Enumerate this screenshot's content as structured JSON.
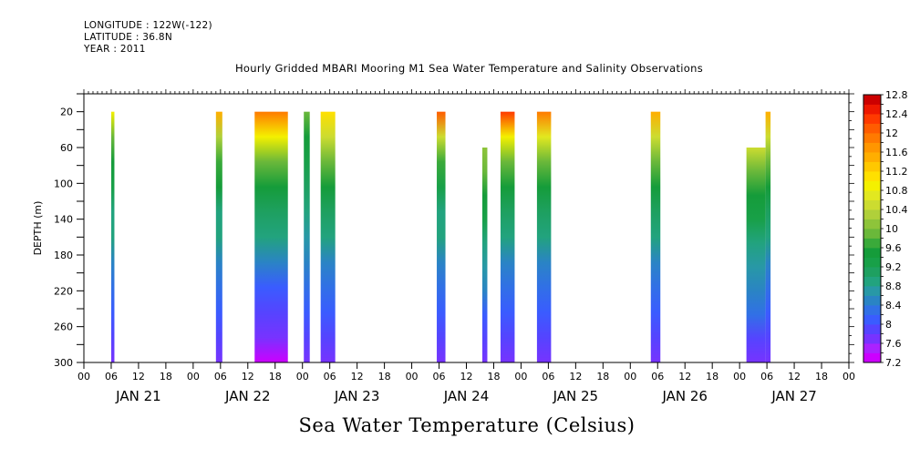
{
  "header": {
    "longitude": "LONGITUDE : 122W(-122)",
    "latitude": "LATITUDE : 36.8N",
    "year": "YEAR : 2011"
  },
  "chart_data": {
    "type": "heatmap",
    "title": "Hourly Gridded MBARI Mooring M1 Sea Water Temperature and Salinity Observations",
    "xlabel": "Sea Water Temperature (Celsius)",
    "ylabel": "DEPTH (m)",
    "x_range_hours": [
      0,
      168
    ],
    "x_hour_ticks": [
      "00",
      "06",
      "12",
      "18",
      "00",
      "06",
      "12",
      "18",
      "00",
      "06",
      "12",
      "18",
      "00",
      "06",
      "12",
      "18",
      "00",
      "06",
      "12",
      "18",
      "00",
      "06",
      "12",
      "18",
      "00",
      "06",
      "12",
      "18",
      "00"
    ],
    "x_day_labels": [
      "JAN 21",
      "JAN 22",
      "JAN 23",
      "JAN 24",
      "JAN 25",
      "JAN 26",
      "JAN 27"
    ],
    "y_range": [
      300,
      0
    ],
    "y_ticks": [
      20,
      60,
      100,
      140,
      180,
      220,
      260,
      300
    ],
    "colorbar": {
      "min": 7.2,
      "max": 12.8,
      "step": 0.2,
      "labels": [
        "12.8",
        "12.4",
        "12",
        "11.6",
        "11.2",
        "10.8",
        "10.4",
        "10",
        "9.6",
        "9.2",
        "8.8",
        "8.4",
        "8",
        "7.6",
        "7.2"
      ],
      "colors": [
        "#cc00ff",
        "#aa22ff",
        "#7733ff",
        "#5544ff",
        "#3a5cff",
        "#3170e6",
        "#2a84c4",
        "#2898a6",
        "#22a37e",
        "#1ea060",
        "#18a048",
        "#159c3a",
        "#3aaa3a",
        "#6ab83a",
        "#8ec43a",
        "#b0d03a",
        "#ccdc30",
        "#e2e820",
        "#f4f000",
        "#ffe000",
        "#ffc800",
        "#ffae00",
        "#ff9600",
        "#ff7a00",
        "#ff5c00",
        "#ff3a00",
        "#ee1800",
        "#cc0000"
      ]
    },
    "profiles": [
      {
        "t0": 6.0,
        "t1": 6.7,
        "top": 20,
        "temps": [
          11.0,
          10.0,
          9.6,
          9.3,
          9.0,
          8.8,
          8.5,
          8.3,
          8.1,
          7.9,
          7.8
        ]
      },
      {
        "t0": 29.0,
        "t1": 30.4,
        "top": 20,
        "temps": [
          11.4,
          10.3,
          9.7,
          9.4,
          9.0,
          8.8,
          8.5,
          8.3,
          8.1,
          7.9,
          7.8
        ]
      },
      {
        "t0": 37.5,
        "t1": 44.8,
        "top": 20,
        "temps": [
          11.8,
          10.8,
          9.9,
          9.5,
          9.1,
          8.8,
          8.5,
          8.2,
          8.0,
          7.7,
          7.2
        ]
      },
      {
        "t0": 48.3,
        "t1": 49.6,
        "top": 20,
        "temps": [
          10.0,
          9.6,
          9.3,
          9.1,
          8.9,
          8.7,
          8.5,
          8.3,
          8.1,
          7.9,
          7.7
        ]
      },
      {
        "t0": 52.0,
        "t1": 55.2,
        "top": 20,
        "temps": [
          11.2,
          10.5,
          9.8,
          9.4,
          9.1,
          8.8,
          8.5,
          8.3,
          8.1,
          7.9,
          7.7
        ]
      },
      {
        "t0": 77.5,
        "t1": 79.4,
        "top": 20,
        "temps": [
          12.2,
          10.6,
          9.7,
          9.3,
          9.0,
          8.8,
          8.5,
          8.3,
          8.1,
          7.9,
          7.7
        ]
      },
      {
        "t0": 87.5,
        "t1": 88.6,
        "top": 60,
        "temps": [
          10.2,
          10.0,
          9.6,
          9.3,
          9.0,
          8.7,
          8.5,
          8.2,
          8.0,
          7.8
        ]
      },
      {
        "t0": 91.5,
        "t1": 94.6,
        "top": 20,
        "temps": [
          12.3,
          10.8,
          9.8,
          9.4,
          9.1,
          8.8,
          8.5,
          8.3,
          8.1,
          7.9,
          7.7
        ]
      },
      {
        "t0": 99.5,
        "t1": 102.6,
        "top": 20,
        "temps": [
          12.0,
          10.7,
          9.9,
          9.5,
          9.1,
          8.8,
          8.5,
          8.3,
          8.1,
          7.9,
          7.7
        ]
      },
      {
        "t0": 124.5,
        "t1": 126.6,
        "top": 20,
        "temps": [
          11.4,
          10.4,
          9.8,
          9.4,
          9.1,
          8.8,
          8.5,
          8.3,
          8.1,
          7.9,
          7.7
        ]
      },
      {
        "t0": 145.5,
        "t1": 149.7,
        "top": 60,
        "temps": [
          10.4,
          10.0,
          9.6,
          9.3,
          9.0,
          8.7,
          8.5,
          8.3,
          8.0,
          7.8
        ]
      },
      {
        "t0": 149.7,
        "t1": 150.8,
        "top": 20,
        "temps": [
          11.6,
          10.4,
          9.8,
          9.4,
          9.1,
          8.8,
          8.5,
          8.3,
          8.1,
          7.9,
          7.7
        ]
      }
    ]
  }
}
